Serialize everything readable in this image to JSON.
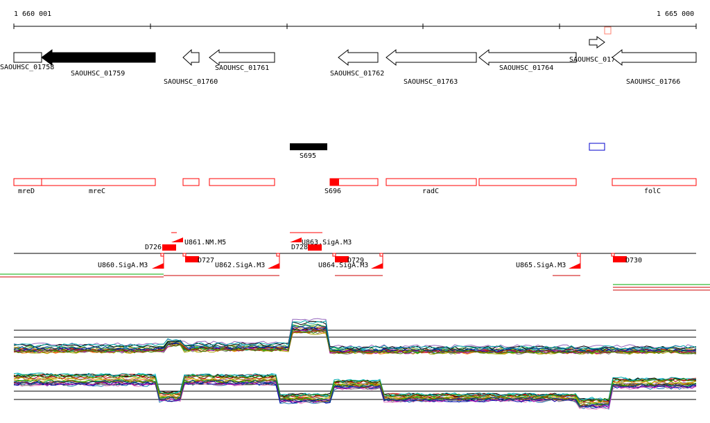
{
  "ruler": {
    "start_label": "1 660 001",
    "end_label": "1 665 000"
  },
  "genes": [
    {
      "id": "SAOUHSC_01758",
      "label": "SAOUHSC_01758",
      "strand": "-",
      "color": "#000",
      "filled": false
    },
    {
      "id": "SAOUHSC_01759",
      "label": "SAOUHSC_01759",
      "strand": "-",
      "color": "#000",
      "filled": true
    },
    {
      "id": "SAOUHSC_01760",
      "label": "SAOUHSC_01760",
      "strand": "-",
      "color": "#000",
      "filled": false
    },
    {
      "id": "SAOUHSC_01761",
      "label": "SAOUHSC_01761",
      "strand": "-",
      "color": "#000",
      "filled": false
    },
    {
      "id": "SAOUHSC_01762",
      "label": "SAOUHSC_01762",
      "strand": "-",
      "color": "#000",
      "filled": false
    },
    {
      "id": "SAOUHSC_01763",
      "label": "SAOUHSC_01763",
      "strand": "-",
      "color": "#000",
      "filled": false
    },
    {
      "id": "SAOUHSC_01764",
      "label": "SAOUHSC_01764",
      "strand": "-",
      "color": "#000",
      "filled": false
    },
    {
      "id": "SAOUHSC_01765",
      "label": "SAOUHSC_01765",
      "strand": "+",
      "color": "#000",
      "filled": false
    },
    {
      "id": "SAOUHSC_01766",
      "label": "SAOUHSC_01766",
      "strand": "-",
      "color": "#000",
      "filled": false
    }
  ],
  "features": [
    {
      "label": "S695",
      "color": "#000000",
      "filled": true
    },
    {
      "label": "",
      "color": "#0000cc",
      "filled": false
    }
  ],
  "annotations": [
    {
      "label": "mreD"
    },
    {
      "label": "mreC"
    },
    {
      "label": ""
    },
    {
      "label": ""
    },
    {
      "label": "S696"
    },
    {
      "label": "radC"
    },
    {
      "label": ""
    },
    {
      "label": "folC"
    }
  ],
  "regulatory": {
    "promoters": [
      "U860.SigA.M3",
      "U861.NM.M5",
      "U862.SigA.M3",
      "U863.SigA.M3",
      "U864.SigA.M3",
      "U865.SigA.M3"
    ],
    "terminators": [
      "D726",
      "D727",
      "D728",
      "D729",
      "D730"
    ]
  },
  "colors": {
    "feature_red": "#ff0000",
    "track_green": "#00aa00",
    "track_red": "#cc0000",
    "series": [
      "#1f77b4",
      "#ff7f0e",
      "#2ca02c",
      "#d62728",
      "#9467bd",
      "#8c564b",
      "#e377c2",
      "#7f7f7f",
      "#bcbd22",
      "#17becf",
      "#000000",
      "#00aa00",
      "#aa0000",
      "#0000aa",
      "#aaaa00",
      "#00aaaa",
      "#aa00aa",
      "#884400",
      "#448800",
      "#004488"
    ]
  },
  "expression": {
    "panels": 2,
    "series_count": 20
  }
}
